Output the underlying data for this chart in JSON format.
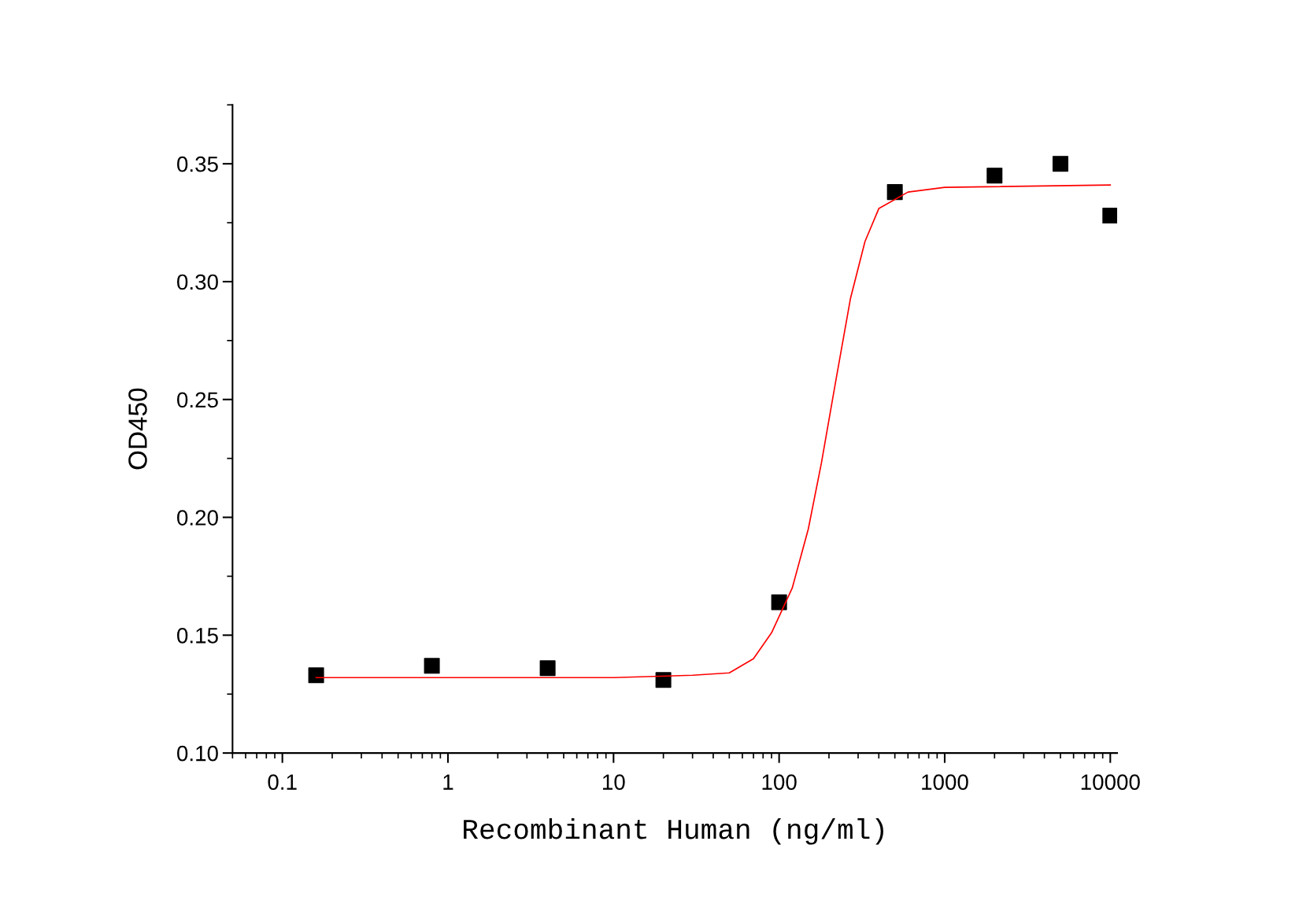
{
  "chart_data": {
    "type": "scatter",
    "xlabel": "Recombinant Human (ng/ml)",
    "ylabel": "OD450",
    "log": "x",
    "grid": false,
    "xlim": [
      0.05,
      11000
    ],
    "xticks": [
      0.1,
      1,
      10,
      100,
      1000,
      10000
    ],
    "ylim": [
      0.1,
      0.375
    ],
    "yticks": [
      {
        "value": 0.1,
        "label": "0.10"
      },
      {
        "value": 0.15,
        "label": "0.15"
      },
      {
        "value": 0.2,
        "label": "0.20"
      },
      {
        "value": 0.25,
        "label": "0.25"
      },
      {
        "value": 0.3,
        "label": "0.30"
      },
      {
        "value": 0.35,
        "label": "0.35"
      }
    ],
    "series": [
      {
        "marker": "square",
        "color": "#000000",
        "x": [
          0.16,
          0.8,
          4,
          20,
          100,
          500,
          2000,
          5000,
          10000
        ],
        "values": [
          0.133,
          0.137,
          0.136,
          0.131,
          0.164,
          0.338,
          0.345,
          0.35,
          0.328
        ]
      },
      {
        "type": "line",
        "marker": "none",
        "line_style": "solid",
        "color": "#ff0000",
        "x": [
          0.16,
          10,
          30,
          50,
          70,
          90,
          120,
          150,
          180,
          220,
          270,
          330,
          400,
          600,
          1000,
          10000
        ],
        "values": [
          0.132,
          0.132,
          0.133,
          0.134,
          0.14,
          0.151,
          0.17,
          0.195,
          0.223,
          0.258,
          0.293,
          0.317,
          0.331,
          0.338,
          0.34,
          0.341
        ]
      }
    ]
  }
}
